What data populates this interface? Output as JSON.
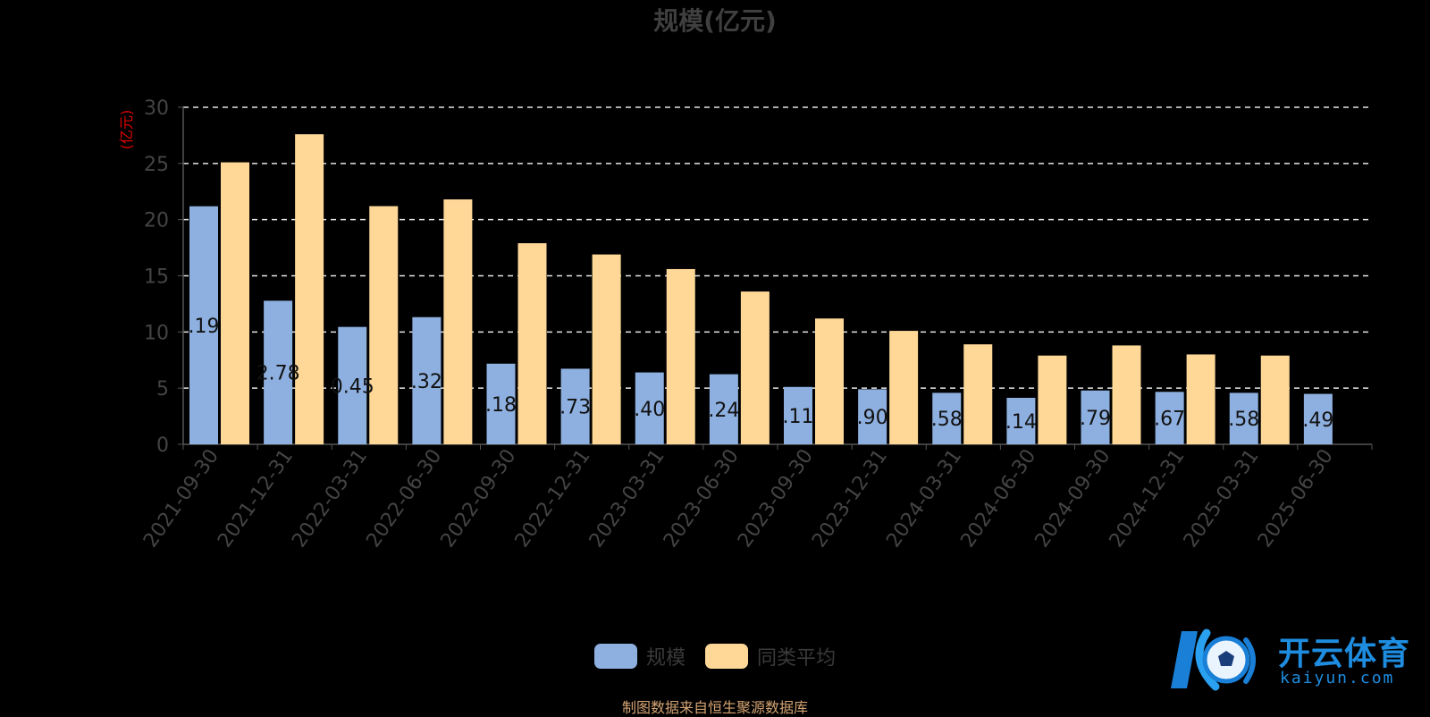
{
  "chart_data": {
    "type": "bar",
    "title": "规模(亿元)",
    "ylabel": "(亿元)",
    "xlabel": "",
    "ylim": [
      0,
      30
    ],
    "yticks": [
      0,
      5,
      10,
      15,
      20,
      25,
      30
    ],
    "grid": true,
    "legend_position": "bottom",
    "categories": [
      "2021-09-30",
      "2021-12-31",
      "2022-03-31",
      "2022-06-30",
      "2022-09-30",
      "2022-12-31",
      "2023-03-31",
      "2023-06-30",
      "2023-09-30",
      "2023-12-31",
      "2024-03-31",
      "2024-06-30",
      "2024-09-30",
      "2024-12-31",
      "2025-03-31",
      "2025-06-30"
    ],
    "series": [
      {
        "name": "规模",
        "color": "#8eb0e0",
        "values": [
          21.19,
          12.78,
          10.45,
          11.32,
          7.18,
          6.73,
          6.4,
          6.24,
          5.11,
          4.9,
          4.58,
          4.14,
          4.79,
          4.67,
          4.58,
          4.49
        ],
        "data_labels": [
          ".19",
          "2.78",
          "0.45",
          ".32",
          ".18",
          ".73",
          ".40",
          ".24",
          ".11",
          ".90",
          ".58",
          ".14",
          ".79",
          ".67",
          ".58",
          ".49"
        ]
      },
      {
        "name": "同类平均",
        "color": "#ffd898",
        "values": [
          25.1,
          27.6,
          21.2,
          21.8,
          17.9,
          16.9,
          15.6,
          13.6,
          11.2,
          10.1,
          8.9,
          7.9,
          8.8,
          8.0,
          7.9,
          null
        ]
      }
    ]
  },
  "source_note": "制图数据来自恒生聚源数据库",
  "watermark": {
    "brand": "开云体育",
    "domain": "kaiyun.com"
  }
}
